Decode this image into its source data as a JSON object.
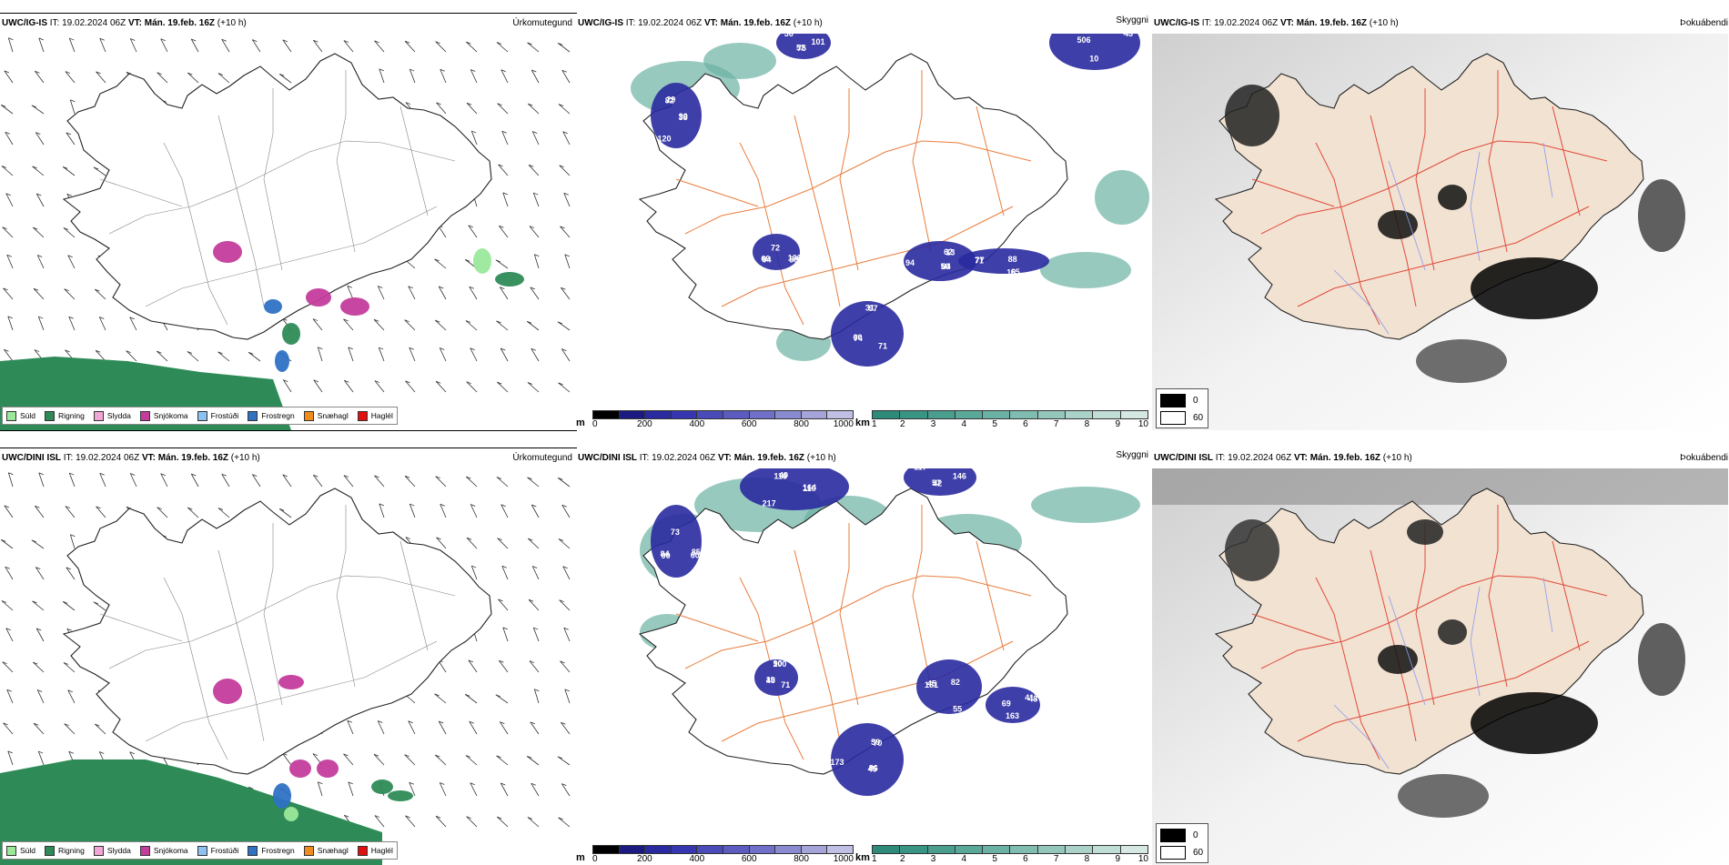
{
  "rows": [
    {
      "model": "UWC/IG-IS",
      "it_label": "IT:",
      "it_value": "19.02.2024 06Z",
      "vt_label": "VT:",
      "vt_value": "Mán. 19.feb. 16Z",
      "lead": "(+10 h)"
    },
    {
      "model": "UWC/DINI ISL",
      "it_label": "IT:",
      "it_value": "19.02.2024 06Z",
      "vt_label": "VT:",
      "vt_value": "Mán. 19.feb. 16Z",
      "lead": "(+10 h)"
    }
  ],
  "fields": {
    "precip": "Úrkomutegund",
    "clouds": "Skyggni",
    "cloudcover": "Þokuábendi"
  },
  "precip_legend": [
    {
      "label": "Súld",
      "color": "#9be89b"
    },
    {
      "label": "Rigning",
      "color": "#2e8b57"
    },
    {
      "label": "Slydda",
      "color": "#f2a6d6"
    },
    {
      "label": "Snjókoma",
      "color": "#c43c9c"
    },
    {
      "label": "Frostúði",
      "color": "#8fc1f0"
    },
    {
      "label": "Frostregn",
      "color": "#2f72c4"
    },
    {
      "label": "Snæhagl",
      "color": "#f08c1e"
    },
    {
      "label": "Haglél",
      "color": "#e01010"
    }
  ],
  "ceiling_bar": {
    "unit": "m",
    "ticks": [
      "0",
      "200",
      "400",
      "600",
      "800",
      "1000"
    ],
    "colors": [
      "#000000",
      "#1a1a80",
      "#2a2aa0",
      "#3636b0",
      "#4a4ab8",
      "#5c5cc0",
      "#7070c8",
      "#8a8ad0",
      "#a4a4d8",
      "#c0c0e4"
    ]
  },
  "visibility_bar": {
    "unit": "km",
    "ticks": [
      "1",
      "2",
      "3",
      "4",
      "5",
      "6",
      "7",
      "8",
      "9",
      "10"
    ],
    "colors": [
      "#2e8b7a",
      "#3a9484",
      "#4a9e8e",
      "#5aa898",
      "#6cb2a4",
      "#80bcb0",
      "#94c6bc",
      "#aad2c8",
      "#c0ddd6",
      "#d6e8e4"
    ]
  },
  "cloud_key": {
    "high": "0",
    "low": "60",
    "high_color": "#000000",
    "low_color": "#ffffff"
  },
  "map_labels": {
    "row1": [
      "90",
      "94",
      "31",
      "84",
      "71",
      "74",
      "75",
      "82",
      "100",
      "74",
      "62",
      "65",
      "506",
      "101",
      "120",
      "72",
      "71",
      "94",
      "88",
      "10",
      "36",
      "38",
      "69",
      "97",
      "50",
      "77",
      "43",
      "52",
      "29",
      "58",
      "60",
      "13",
      "18"
    ],
    "row2": [
      "164",
      "90",
      "90",
      "86",
      "181",
      "417",
      "42",
      "116",
      "85",
      "48",
      "59",
      "55",
      "69",
      "146",
      "217",
      "73",
      "71",
      "173",
      "82",
      "163",
      "117",
      "110",
      "84",
      "100",
      "45",
      "45",
      "48",
      "57",
      "49",
      "60",
      "19",
      "70"
    ]
  }
}
